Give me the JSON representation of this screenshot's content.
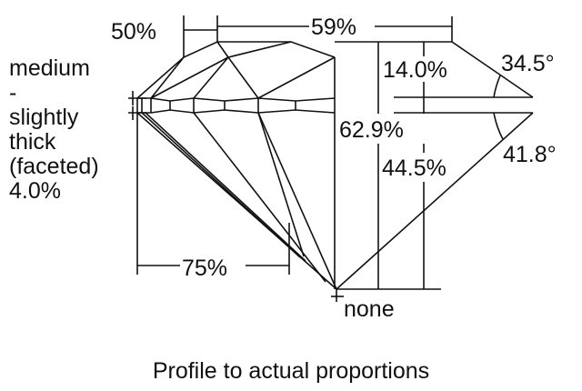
{
  "diagram": {
    "caption": "Profile to actual proportions",
    "girdle_label_lines": [
      "medium",
      "-",
      "slightly",
      "thick",
      "(faceted)",
      "4.0%"
    ],
    "table_percent": "59%",
    "star_length": "50%",
    "lower_half_length": "75%",
    "crown_height": "14.0%",
    "crown_angle": "34.5°",
    "total_depth": "62.9%",
    "pavilion_depth": "44.5%",
    "pavilion_angle": "41.8°",
    "culet": "none",
    "line_color": "#111111"
  }
}
